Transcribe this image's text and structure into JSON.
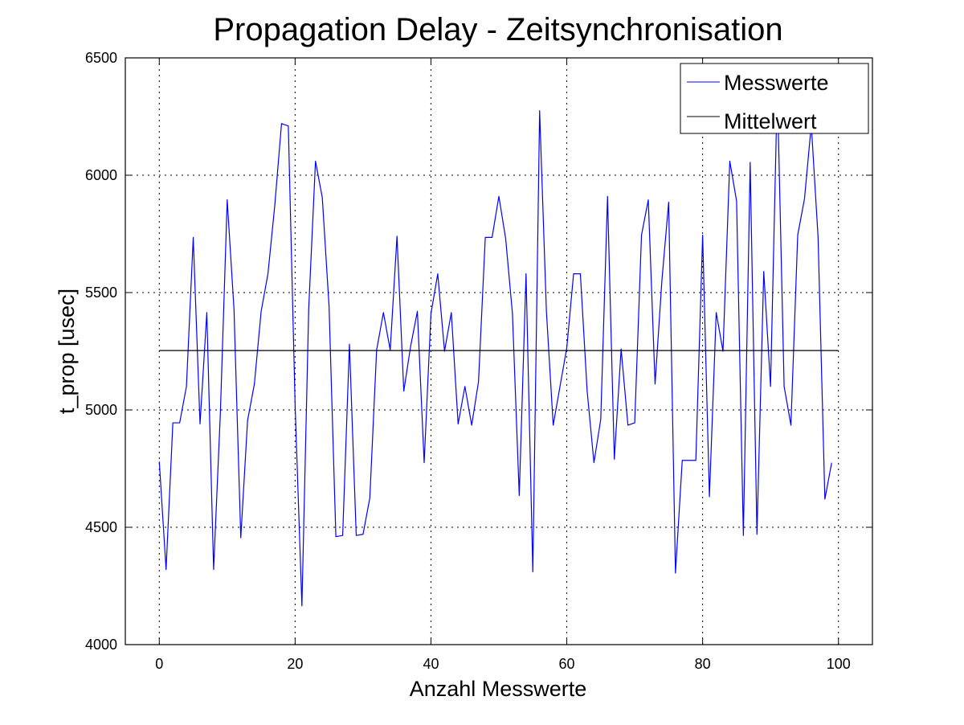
{
  "chart_data": {
    "type": "line",
    "title": "Propagation Delay - Zeitsynchronisation",
    "xlabel": "Anzahl Messwerte",
    "ylabel": "t_prop [usec]",
    "xlim": [
      -5,
      105
    ],
    "ylim": [
      4000,
      6500
    ],
    "xticks": [
      0,
      20,
      40,
      60,
      80,
      100
    ],
    "yticks": [
      4000,
      4500,
      5000,
      5500,
      6000,
      6500
    ],
    "grid": true,
    "legend_position": "top-right",
    "series": [
      {
        "name": "Messwerte",
        "color": "#0000ff",
        "x": [
          0,
          1,
          2,
          3,
          4,
          5,
          6,
          7,
          8,
          9,
          10,
          11,
          12,
          13,
          14,
          15,
          16,
          17,
          18,
          19,
          20,
          21,
          22,
          23,
          24,
          25,
          26,
          27,
          28,
          29,
          30,
          31,
          32,
          33,
          34,
          35,
          36,
          37,
          38,
          39,
          40,
          41,
          42,
          43,
          44,
          45,
          46,
          47,
          48,
          49,
          50,
          51,
          52,
          53,
          54,
          55,
          56,
          57,
          58,
          59,
          60,
          61,
          62,
          63,
          64,
          65,
          66,
          67,
          68,
          69,
          70,
          71,
          72,
          73,
          74,
          75,
          76,
          77,
          78,
          79,
          80,
          81,
          82,
          83,
          84,
          85,
          86,
          87,
          88,
          89,
          90,
          91,
          92,
          93,
          94,
          95,
          96,
          97,
          98,
          99
        ],
        "values": [
          4780,
          4320,
          4945,
          4945,
          5100,
          5735,
          4940,
          5415,
          4320,
          4990,
          5895,
          5430,
          4455,
          4955,
          5110,
          5420,
          5580,
          5870,
          6220,
          6210,
          5020,
          4165,
          5430,
          6060,
          5905,
          5440,
          4460,
          4465,
          5280,
          4465,
          4470,
          4625,
          5255,
          5415,
          5255,
          5740,
          5080,
          5270,
          5420,
          4775,
          5410,
          5580,
          5250,
          5415,
          4940,
          5100,
          4935,
          5120,
          5735,
          5735,
          5910,
          5730,
          5410,
          4635,
          5580,
          4310,
          6275,
          5420,
          4935,
          5100,
          5265,
          5580,
          5580,
          5080,
          4775,
          4960,
          5910,
          4790,
          5260,
          4935,
          4945,
          5745,
          5895,
          5110,
          5550,
          5885,
          4305,
          4785,
          4785,
          4785,
          5745,
          4630,
          5415,
          5250,
          6060,
          5890,
          4465,
          6055,
          4470,
          5590,
          5100,
          6380,
          5100,
          4935,
          5745,
          5900,
          6215,
          5735,
          4620,
          4775
        ]
      },
      {
        "name": "Mittelwert",
        "color": "#000000",
        "x": [
          0,
          100
        ],
        "values": [
          5253,
          5253
        ]
      }
    ]
  }
}
